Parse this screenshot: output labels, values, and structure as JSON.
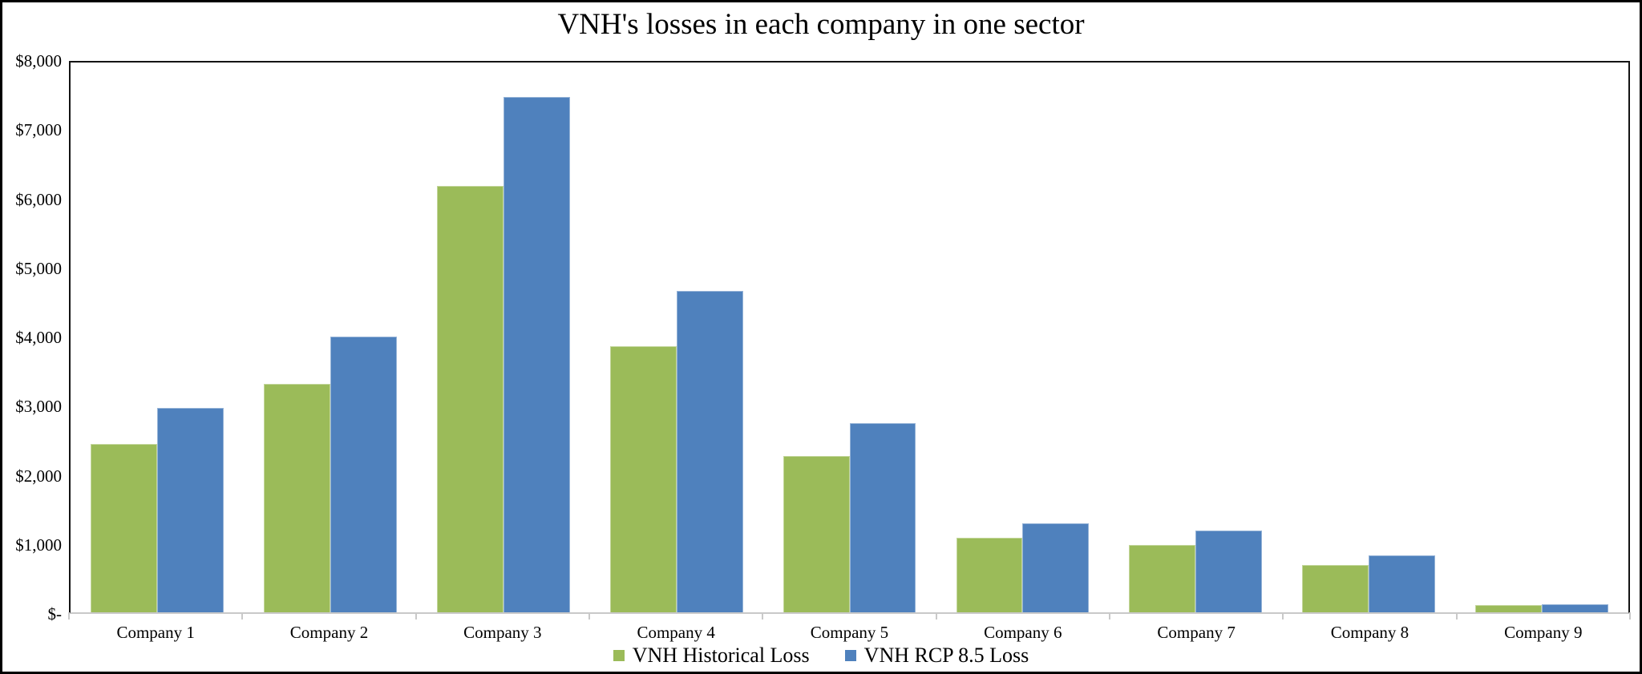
{
  "figure": {
    "background_color": "#ffffff",
    "border_color": "#000000"
  },
  "chart_data": {
    "type": "bar",
    "title": "VNH's losses in each company in one sector",
    "xlabel": "",
    "ylabel": "",
    "categories": [
      "Company 1",
      "Company 2",
      "Company 3",
      "Company 4",
      "Company 5",
      "Company 6",
      "Company 7",
      "Company 8",
      "Company 9"
    ],
    "series": [
      {
        "name": "VNH Historical Loss",
        "color": "#9bbb59",
        "border_color": "#c3d69b",
        "values": [
          2450,
          3320,
          6200,
          3870,
          2270,
          1080,
          980,
          685,
          105
        ]
      },
      {
        "name": "VNH RCP 8.5 Loss",
        "color": "#4f81bd",
        "border_color": "#95b3d7",
        "values": [
          2975,
          4010,
          7500,
          4680,
          2750,
          1300,
          1195,
          825,
          120
        ]
      }
    ],
    "ylim": [
      0,
      8000
    ],
    "ytick_step": 1000,
    "ytick_labels_top_to_bottom": [
      "$8,000",
      "$7,000",
      "$6,000",
      "$5,000",
      "$4,000",
      "$3,000",
      "$2,000",
      "$1,000",
      "$-"
    ],
    "grid": false,
    "legend_position": "bottom-center",
    "axis_colors": {
      "y_axis_line": "#141414",
      "plot_border": "#141414",
      "x_axis_line": "#c9c9c9",
      "tick_color": "#c9c9c9"
    }
  }
}
